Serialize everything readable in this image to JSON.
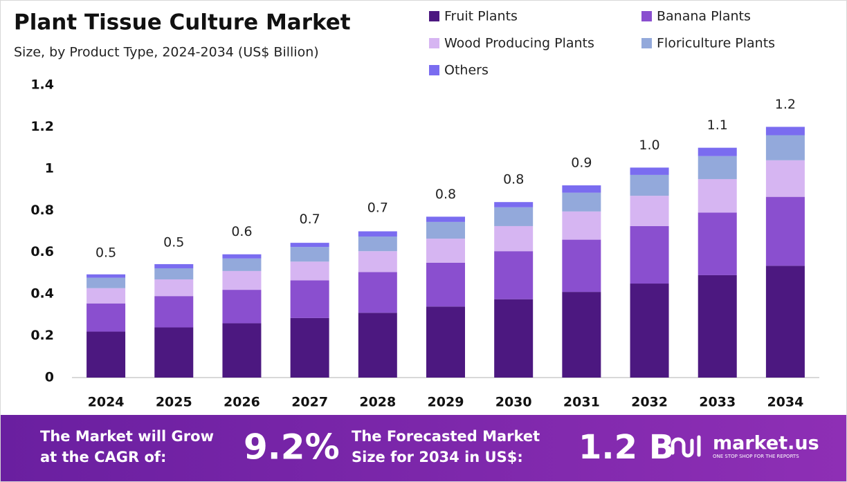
{
  "chart_data": {
    "type": "stacked-bar",
    "title": "Plant Tissue Culture Market",
    "subtitle": "Size, by Product Type, 2024-2034 (US$ Billion)",
    "categories": [
      "2024",
      "2025",
      "2026",
      "2027",
      "2028",
      "2029",
      "2030",
      "2031",
      "2032",
      "2033",
      "2034"
    ],
    "series": [
      {
        "name": "Fruit Plants",
        "color": "#4c1880",
        "values": [
          0.22,
          0.24,
          0.26,
          0.285,
          0.31,
          0.34,
          0.375,
          0.41,
          0.45,
          0.49,
          0.535
        ]
      },
      {
        "name": "Banana Plants",
        "color": "#8a4fcf",
        "values": [
          0.135,
          0.15,
          0.16,
          0.18,
          0.195,
          0.21,
          0.23,
          0.25,
          0.275,
          0.3,
          0.33
        ]
      },
      {
        "name": "Wood Producing Plants",
        "color": "#d6b5f2",
        "values": [
          0.073,
          0.08,
          0.09,
          0.09,
          0.1,
          0.115,
          0.12,
          0.135,
          0.145,
          0.16,
          0.175
        ]
      },
      {
        "name": "Floriculture Plants",
        "color": "#93a9db",
        "values": [
          0.05,
          0.053,
          0.06,
          0.07,
          0.07,
          0.08,
          0.09,
          0.09,
          0.1,
          0.11,
          0.12
        ]
      },
      {
        "name": "Others",
        "color": "#7a6cf0",
        "values": [
          0.016,
          0.02,
          0.02,
          0.02,
          0.025,
          0.025,
          0.025,
          0.035,
          0.035,
          0.04,
          0.04
        ]
      }
    ],
    "totals": [
      0.49,
      0.54,
      0.59,
      0.65,
      0.705,
      0.77,
      0.84,
      0.92,
      1.005,
      1.1,
      1.2
    ],
    "total_labels": [
      "0.5",
      "0.5",
      "0.6",
      "0.7",
      "0.7",
      "0.8",
      "0.8",
      "0.9",
      "1.0",
      "1.1",
      "1.2"
    ],
    "ylim": [
      0,
      1.4
    ],
    "yticks": [
      0,
      0.2,
      0.4,
      0.6,
      0.8,
      1,
      1.2,
      1.4
    ],
    "grid": false
  },
  "footer": {
    "cagr_text": [
      "The Market will Grow",
      "at the CAGR of:"
    ],
    "cagr_value": "9.2%",
    "forecast_text": [
      "The Forecasted Market",
      "Size for 2034 in US$:"
    ],
    "forecast_value": "1.2 B",
    "brand": "market.us",
    "tagline": "ONE STOP SHOP FOR THE REPORTS"
  }
}
